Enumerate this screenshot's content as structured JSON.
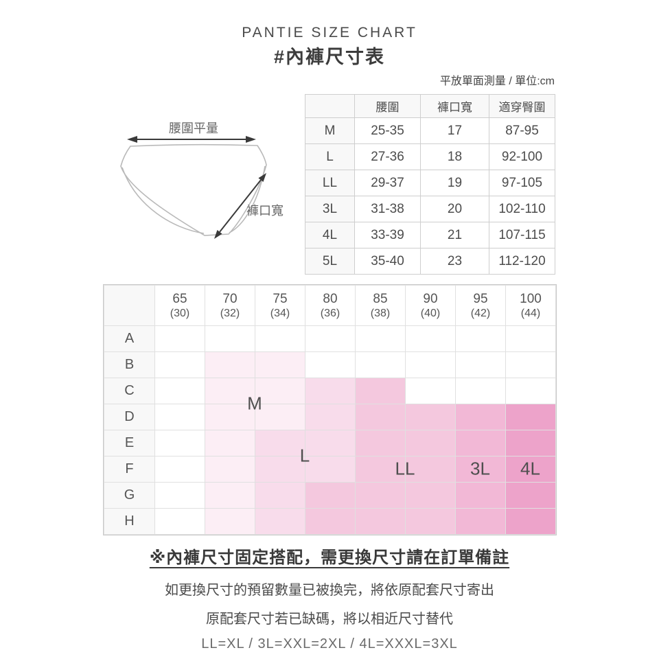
{
  "header": {
    "title_en": "PANTIE SIZE CHART",
    "title_zh": "#內褲尺寸表",
    "unit_note": "平放單面測量 / 單位:cm"
  },
  "diagram": {
    "waist_label": "腰圍平量",
    "leg_opening_label": "褲口寬"
  },
  "chart_data": [
    {
      "type": "table",
      "columns": [
        "",
        "腰圍",
        "褲口寬",
        "適穿臀圍"
      ],
      "rows": [
        [
          "M",
          "25-35",
          "17",
          "87-95"
        ],
        [
          "L",
          "27-36",
          "18",
          "92-100"
        ],
        [
          "LL",
          "29-37",
          "19",
          "97-105"
        ],
        [
          "3L",
          "31-38",
          "20",
          "102-110"
        ],
        [
          "4L",
          "33-39",
          "21",
          "107-115"
        ],
        [
          "5L",
          "35-40",
          "23",
          "112-120"
        ]
      ]
    },
    {
      "type": "heatmap",
      "x": [
        "65 (30)",
        "70 (32)",
        "75 (34)",
        "80 (36)",
        "85 (38)",
        "90 (40)",
        "95 (42)",
        "100 (44)"
      ],
      "y": [
        "A",
        "B",
        "C",
        "D",
        "E",
        "F",
        "G",
        "H"
      ],
      "values": [
        [
          "",
          "",
          "",
          "",
          "",
          "",
          "",
          ""
        ],
        [
          "",
          "M",
          "M",
          "",
          "",
          "",
          "",
          ""
        ],
        [
          "",
          "M",
          "M",
          "L",
          "LL",
          "",
          "",
          ""
        ],
        [
          "",
          "M",
          "M",
          "L",
          "LL",
          "LL",
          "3L",
          "4L"
        ],
        [
          "",
          "M",
          "L",
          "L",
          "LL",
          "LL",
          "3L",
          "4L"
        ],
        [
          "",
          "M",
          "L",
          "L",
          "LL",
          "LL",
          "3L",
          "4L"
        ],
        [
          "",
          "M",
          "L",
          "LL",
          "LL",
          "LL",
          "3L",
          "4L"
        ],
        [
          "",
          "M",
          "L",
          "LL",
          "LL",
          "LL",
          "3L",
          "4L"
        ]
      ],
      "colors": {
        "M": "#fceef5",
        "L": "#f8dceb",
        "LL": "#f4c8de",
        "3L": "#f2b8d6",
        "4L": "#eda3ca"
      },
      "region_labels": [
        {
          "text": "M",
          "col": 2,
          "row": 3
        },
        {
          "text": "L",
          "col": 3,
          "row": 5
        },
        {
          "text": "LL",
          "col": 5,
          "row": 5.5
        },
        {
          "text": "3L",
          "col": 6.5,
          "row": 5.5
        },
        {
          "text": "4L",
          "col": 7.5,
          "row": 5.5
        }
      ]
    }
  ],
  "notes": {
    "headline": "※內褲尺寸固定搭配，需更換尺寸請在訂單備註",
    "line1": "如更換尺寸的預留數量已被換完，將依原配套尺寸寄出",
    "line2": "原配套尺寸若已缺碼，將以相近尺寸替代",
    "line3": "LL=XL / 3L=XXL=2XL / 4L=XXXL=3XL"
  }
}
